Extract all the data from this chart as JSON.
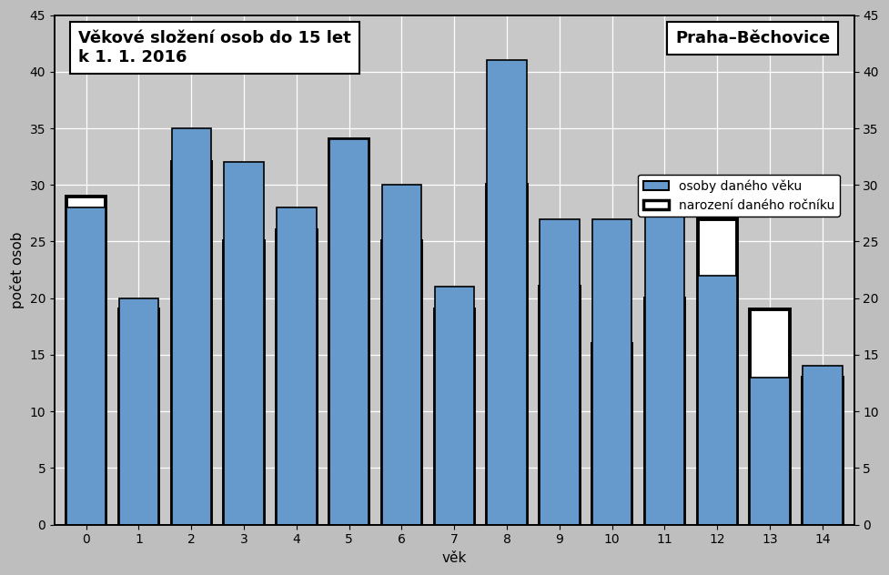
{
  "ages": [
    0,
    1,
    2,
    3,
    4,
    5,
    6,
    7,
    8,
    9,
    10,
    11,
    12,
    13,
    14
  ],
  "bar_values": [
    28,
    20,
    35,
    32,
    28,
    34,
    30,
    21,
    41,
    27,
    27,
    28,
    22,
    13,
    14
  ],
  "birth_values": [
    29,
    19,
    32,
    25,
    26,
    34,
    25,
    19,
    30,
    21,
    16,
    20,
    27,
    19,
    13
  ],
  "bar_color": "#6699CC",
  "bar_edgecolor": "#000000",
  "birth_edgecolor": "#000000",
  "birth_facecolor": "white",
  "background_color": "#BEBEBE",
  "plot_bg_color": "#C8C8C8",
  "title_text": "Věkové složení osob do 15 let\nk 1. 1. 2016",
  "subtitle_text": "Praha–Běchovice",
  "ylabel": "počet osob",
  "xlabel": "věk",
  "ylim": [
    0,
    45
  ],
  "yticks": [
    0,
    5,
    10,
    15,
    20,
    25,
    30,
    35,
    40,
    45
  ],
  "legend_bar_label": "osoby daného věku",
  "legend_birth_label": "narození daného ročníku",
  "bar_width": 0.75,
  "birth_linewidth": 2.8,
  "bar_linewidth": 1.2,
  "title_fontsize": 13,
  "axis_fontsize": 11,
  "tick_fontsize": 10,
  "legend_fontsize": 10
}
